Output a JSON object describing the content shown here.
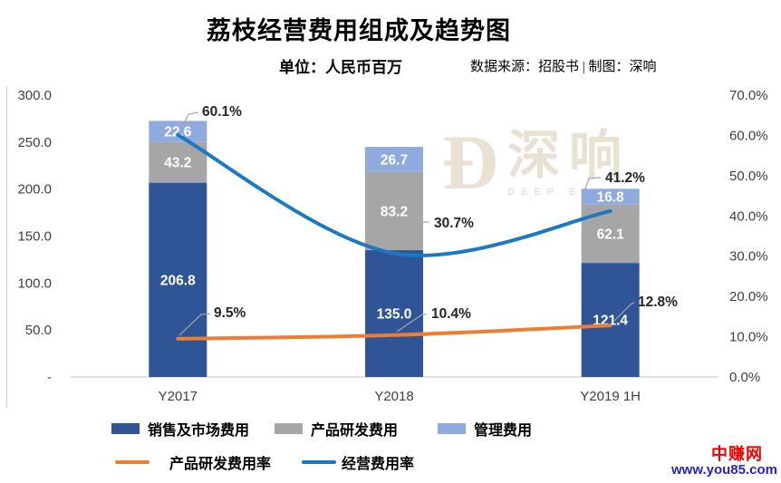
{
  "header": {
    "title": "荔枝经营费用组成及趋势图",
    "subtitle": "单位：人民币百万",
    "source": "数据来源：招股书 | 制图：深响"
  },
  "watermark": {
    "glyph": "Ð",
    "name_cn": "深响",
    "name_en": "DEEP ECHO"
  },
  "footer_watermark": {
    "site_name": "中赚网",
    "site_url": "www.you85.com"
  },
  "colors": {
    "sales_bar": "#2F5597",
    "rd_bar": "#A6A6A6",
    "admin_bar": "#8FAADC",
    "opex_rate_line": "#1B78C2",
    "rd_rate_line": "#ED7D31",
    "axis_text": "#404040",
    "baseline": "#D9D9D9",
    "callout_text": "#262626",
    "leader_line": "#A6A6A6",
    "watermark": "#E9E1D3"
  },
  "chart_data": {
    "type": "bar",
    "subtype": "stacked-column-with-line-overlay",
    "title": "荔枝经营费用组成及趋势图",
    "unit": "人民币百万",
    "categories": [
      "Y2017",
      "Y2018",
      "Y2019 1H"
    ],
    "bar_series": [
      {
        "name": "销售及市场费用",
        "color": "#2F5597",
        "values": [
          206.8,
          135.0,
          121.4
        ],
        "labels": [
          "206.8",
          "135.0",
          "121.4"
        ]
      },
      {
        "name": "产品研发费用",
        "color": "#A6A6A6",
        "values": [
          43.2,
          83.2,
          62.1
        ],
        "labels": [
          "43.2",
          "83.2",
          "62.1"
        ]
      },
      {
        "name": "管理费用",
        "color": "#8FAADC",
        "values": [
          22.6,
          26.7,
          16.8
        ],
        "labels": [
          "22.6",
          "26.7",
          "16.8"
        ]
      }
    ],
    "line_series": [
      {
        "name": "经营费用率",
        "color": "#1B78C2",
        "axis": "right",
        "values": [
          60.1,
          30.7,
          41.2
        ],
        "labels": [
          "60.1%",
          "30.7%",
          "41.2%"
        ]
      },
      {
        "name": "产品研发费用率",
        "color": "#ED7D31",
        "axis": "right",
        "values": [
          9.5,
          10.4,
          12.8
        ],
        "labels": [
          "9.5%",
          "10.4%",
          "12.8%"
        ]
      }
    ],
    "left_axis": {
      "min": 0,
      "max": 300,
      "ticks": [
        {
          "v": 300,
          "label": "300.0"
        },
        {
          "v": 250,
          "label": "250.0"
        },
        {
          "v": 200,
          "label": "200.0"
        },
        {
          "v": 150,
          "label": "150.0"
        },
        {
          "v": 100,
          "label": "100.0"
        },
        {
          "v": 50,
          "label": "50.0"
        },
        {
          "v": 0,
          "label": "-"
        }
      ]
    },
    "right_axis": {
      "min": 0,
      "max": 70,
      "ticks": [
        {
          "v": 70,
          "label": "70.0%"
        },
        {
          "v": 60,
          "label": "60.0%"
        },
        {
          "v": 50,
          "label": "50.0%"
        },
        {
          "v": 40,
          "label": "40.0%"
        },
        {
          "v": 30,
          "label": "30.0%"
        },
        {
          "v": 20,
          "label": "20.0%"
        },
        {
          "v": 10,
          "label": "10.0%"
        },
        {
          "v": 0,
          "label": "0.0%"
        }
      ]
    },
    "grid": "baseline-only",
    "legend_position": "bottom"
  }
}
